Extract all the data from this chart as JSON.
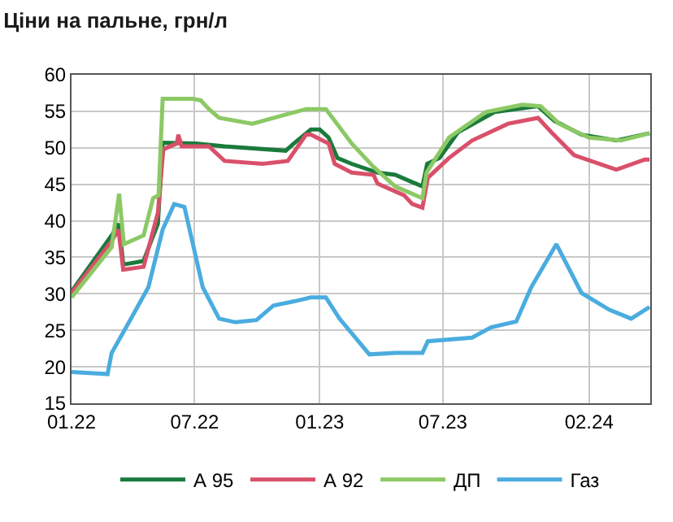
{
  "chart_data": {
    "type": "line",
    "title": "Ціни на пальне, грн/л",
    "xlim": [
      "2022-01-01",
      "2024-05-01"
    ],
    "xticks": [
      {
        "value": "2022-01-01",
        "label": "01.22"
      },
      {
        "value": "2022-07-01",
        "label": "07.22"
      },
      {
        "value": "2023-01-01",
        "label": "01.23"
      },
      {
        "value": "2023-07-01",
        "label": "07.23"
      },
      {
        "value": "2024-02-01",
        "label": "02.24"
      }
    ],
    "ylim": [
      15,
      60
    ],
    "yticks": [
      15,
      20,
      25,
      30,
      35,
      40,
      45,
      50,
      55,
      60
    ],
    "grid": true,
    "legend": "bottom",
    "line_style": "solid",
    "marker": "none",
    "series": [
      {
        "name": "А 95",
        "color": "#1a7a3c",
        "x": [
          "2022-01-01",
          "2022-03-01",
          "2022-03-12",
          "2022-03-18",
          "2022-04-17",
          "2022-04-28",
          "2022-05-08",
          "2022-05-15",
          "2022-07-03",
          "2022-08-14",
          "2022-11-12",
          "2022-11-24",
          "2022-12-19",
          "2023-01-01",
          "2023-01-14",
          "2023-01-27",
          "2023-02-17",
          "2023-03-27",
          "2023-04-22",
          "2023-06-01",
          "2023-06-08",
          "2023-06-26",
          "2023-07-23",
          "2023-09-15",
          "2023-11-18",
          "2023-12-12",
          "2024-01-21",
          "2024-03-12",
          "2024-04-30"
        ],
        "values": [
          30.3,
          38,
          39.6,
          34,
          34.5,
          37.2,
          39.6,
          50.7,
          50.6,
          50.2,
          49.6,
          50.6,
          52.5,
          52.5,
          51.4,
          48.6,
          47.8,
          46.6,
          46.3,
          44.7,
          47.8,
          48.6,
          52.1,
          54.9,
          55.7,
          53.7,
          51.8,
          51,
          52
        ]
      },
      {
        "name": "А 92",
        "color": "#d9506a",
        "x": [
          "2022-01-01",
          "2022-03-01",
          "2022-03-11",
          "2022-03-18",
          "2022-04-17",
          "2022-05-08",
          "2022-05-16",
          "2022-06-05",
          "2022-06-07",
          "2022-06-12",
          "2022-07-22",
          "2022-08-14",
          "2022-10-09",
          "2022-11-15",
          "2022-12-12",
          "2022-12-19",
          "2023-01-14",
          "2023-01-23",
          "2023-02-17",
          "2023-03-21",
          "2023-03-27",
          "2023-05-05",
          "2023-05-17",
          "2023-06-01",
          "2023-06-09",
          "2023-07-10",
          "2023-08-13",
          "2023-10-05",
          "2023-11-18",
          "2023-12-08",
          "2024-01-10",
          "2024-03-12",
          "2024-04-23",
          "2024-04-30"
        ],
        "values": [
          30.1,
          37.2,
          38.8,
          33.3,
          33.7,
          41.1,
          49.8,
          50.6,
          51.8,
          50.2,
          50.2,
          48.2,
          47.8,
          48.2,
          51.8,
          51.8,
          50.6,
          47.8,
          46.6,
          46.3,
          45.1,
          43.5,
          42.3,
          41.8,
          45.9,
          48.6,
          51,
          53.3,
          54.1,
          52.1,
          49,
          47,
          48.4,
          48.4
        ]
      },
      {
        "name": "ДП",
        "color": "#8cc965",
        "x": [
          "2022-01-01",
          "2022-03-01",
          "2022-03-12",
          "2022-03-19",
          "2022-04-17",
          "2022-05-01",
          "2022-05-09",
          "2022-05-15",
          "2022-06-28",
          "2022-07-10",
          "2022-07-22",
          "2022-08-06",
          "2022-09-24",
          "2022-11-10",
          "2022-12-12",
          "2023-01-10",
          "2023-01-23",
          "2023-02-17",
          "2023-03-21",
          "2023-04-22",
          "2023-06-01",
          "2023-06-07",
          "2023-07-10",
          "2023-09-02",
          "2023-10-26",
          "2023-11-22",
          "2023-12-19",
          "2024-02-01",
          "2024-03-19",
          "2024-04-30"
        ],
        "values": [
          29.5,
          36.4,
          43.7,
          36.8,
          38,
          43.1,
          43.5,
          56.7,
          56.7,
          56.5,
          55.3,
          54.1,
          53.3,
          54.5,
          55.3,
          55.3,
          53.7,
          50.6,
          47.4,
          44.7,
          43.1,
          46.6,
          51.4,
          54.9,
          55.9,
          55.7,
          53.3,
          51.4,
          51,
          52
        ]
      },
      {
        "name": "Газ",
        "color": "#4aacdf",
        "x": [
          "2022-01-01",
          "2022-02-23",
          "2022-03-01",
          "2022-03-27",
          "2022-04-24",
          "2022-05-15",
          "2022-06-01",
          "2022-06-16",
          "2022-07-13",
          "2022-08-06",
          "2022-08-30",
          "2022-09-30",
          "2022-10-25",
          "2022-11-26",
          "2022-12-19",
          "2023-01-10",
          "2023-01-30",
          "2023-03-15",
          "2023-04-22",
          "2023-06-01",
          "2023-06-09",
          "2023-08-13",
          "2023-09-10",
          "2023-10-17",
          "2023-11-08",
          "2023-12-15",
          "2024-01-21",
          "2024-03-02",
          "2024-04-03",
          "2024-04-30"
        ],
        "values": [
          19.3,
          19,
          21.9,
          26.2,
          30.9,
          38.8,
          42.3,
          41.9,
          30.9,
          26.6,
          26.1,
          26.4,
          28.4,
          29,
          29.5,
          29.5,
          26.6,
          21.7,
          21.9,
          21.9,
          23.5,
          24,
          25.4,
          26.2,
          30.9,
          36.8,
          30.1,
          27.8,
          26.6,
          28.2
        ]
      }
    ]
  }
}
